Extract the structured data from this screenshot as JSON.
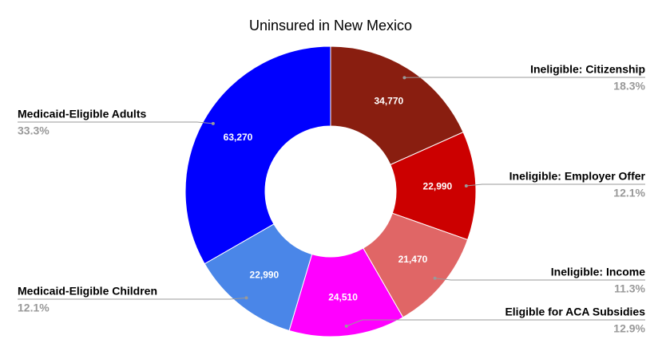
{
  "chart_data": {
    "type": "donut",
    "title": "Uninsured in New Mexico",
    "categories": [
      "Ineligible: Citizenship",
      "Ineligible: Employer Offer",
      "Ineligible: Income",
      "Eligible for ACA Subsidies",
      "Medicaid-Eligible Children",
      "Medicaid-Eligible Adults"
    ],
    "values": [
      34770,
      22990,
      21470,
      24510,
      22990,
      63270
    ],
    "value_labels": [
      "34,770",
      "22,990",
      "21,470",
      "24,510",
      "22,990",
      "63,270"
    ],
    "percent_labels": [
      "18.3%",
      "12.1%",
      "11.3%",
      "12.9%",
      "12.1%",
      "33.3%"
    ],
    "colors": [
      "#891e10",
      "#cc0000",
      "#e06666",
      "#ff00ff",
      "#4a86e8",
      "#0000ff"
    ]
  }
}
